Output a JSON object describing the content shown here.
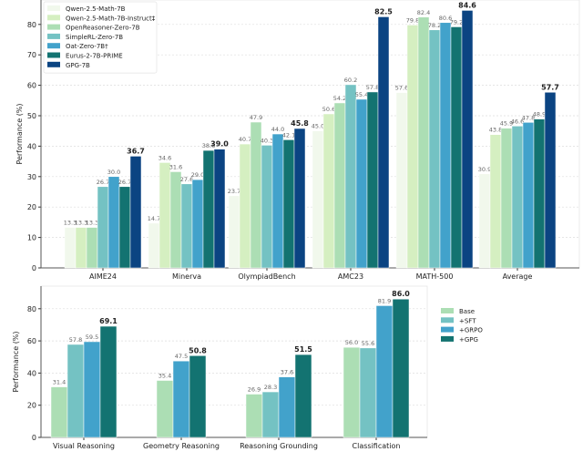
{
  "chart_data": [
    {
      "type": "bar",
      "ylabel": "Performance (%)",
      "ylim": [
        0,
        88
      ],
      "yticks": [
        0,
        10,
        20,
        30,
        40,
        50,
        60,
        70,
        80
      ],
      "grid": true,
      "legend_position": "top-left",
      "categories": [
        "AIME24",
        "Minerva",
        "OlympiadBench",
        "AMC23",
        "MATH-500",
        "Average"
      ],
      "series": [
        {
          "name": "Qwen-2.5-Math-7B",
          "color": "#f1f8ec",
          "values": [
            13.3,
            14.7,
            23.7,
            45.0,
            57.6,
            30.9
          ]
        },
        {
          "name": "Qwen-2.5-Math-7B-Instruct‡",
          "color": "#d5efc1",
          "values": [
            13.3,
            34.6,
            40.7,
            50.6,
            79.8,
            43.8
          ]
        },
        {
          "name": "OpenReasoner-Zero-7B",
          "color": "#acdeb4",
          "values": [
            13.3,
            31.6,
            47.9,
            54.2,
            82.4,
            45.9
          ]
        },
        {
          "name": "SimpleRL-Zero-7B",
          "color": "#74c2c3",
          "values": [
            26.7,
            27.6,
            40.3,
            60.2,
            78.2,
            46.6
          ]
        },
        {
          "name": "Oat-Zero-7B†",
          "color": "#42a2cb",
          "values": [
            30.0,
            29.0,
            44.0,
            55.4,
            80.6,
            47.8
          ]
        },
        {
          "name": "Eurus-2-7B-PRIME",
          "color": "#137371",
          "values": [
            26.7,
            38.6,
            42.1,
            57.8,
            79.2,
            48.9
          ]
        },
        {
          "name": "GPG-7B",
          "color": "#0b4482",
          "values": [
            36.7,
            39.0,
            45.8,
            82.5,
            84.6,
            57.7
          ]
        }
      ]
    },
    {
      "type": "bar",
      "ylabel": "Performance (%)",
      "ylim": [
        0,
        94
      ],
      "yticks": [
        0,
        20,
        40,
        60,
        80
      ],
      "grid": true,
      "legend_position": "right",
      "categories": [
        "Visual Reasoning",
        "Geometry Reasoning",
        "Reasoning Grounding",
        "Classification"
      ],
      "series": [
        {
          "name": "Base",
          "color": "#acdeb4",
          "values": [
            31.4,
            35.4,
            26.9,
            56.0
          ]
        },
        {
          "name": "+SFT",
          "color": "#74c2c3",
          "values": [
            57.8,
            null,
            28.3,
            55.6
          ]
        },
        {
          "name": "+GRPO",
          "color": "#42a2cb",
          "values": [
            59.5,
            47.5,
            37.6,
            81.9
          ]
        },
        {
          "name": "+GPG",
          "color": "#137371",
          "values": [
            69.1,
            50.8,
            51.5,
            86.0
          ]
        }
      ]
    }
  ]
}
